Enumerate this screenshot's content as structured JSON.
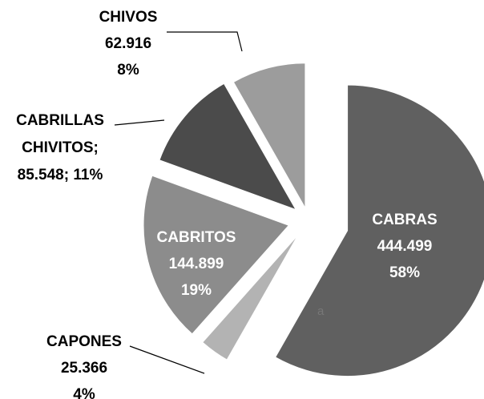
{
  "chart_data": {
    "type": "pie",
    "categories": [
      "CABRAS",
      "CAPONES",
      "CABRITOS",
      "CABRILLAS CHIVITOS;",
      "CHIVOS"
    ],
    "values": [
      444499,
      25366,
      144899,
      85548,
      62916
    ],
    "value_labels": [
      "444.499",
      "25.366",
      "144.899",
      "85.548;",
      "62.916"
    ],
    "percents": [
      58,
      4,
      19,
      11,
      8
    ],
    "percent_labels": [
      "58%",
      "4%",
      "19%",
      "11%",
      "8%"
    ],
    "colors": [
      "#606060",
      "#b3b3b3",
      "#8c8c8c",
      "#4b4b4b",
      "#9c9c9c"
    ],
    "annotation": "a"
  }
}
